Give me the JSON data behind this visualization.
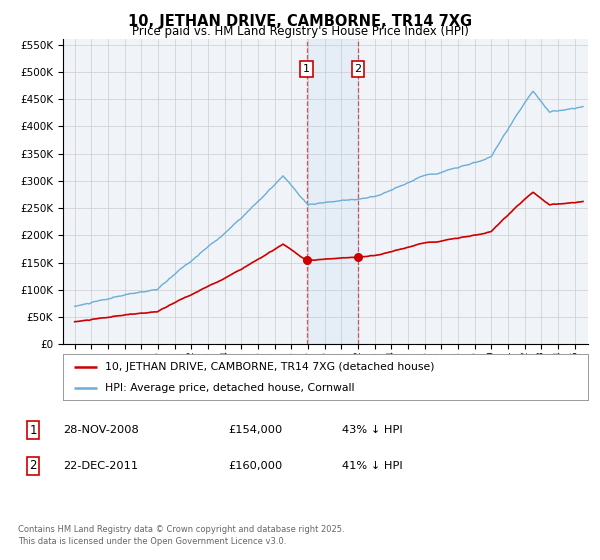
{
  "title": "10, JETHAN DRIVE, CAMBORNE, TR14 7XG",
  "subtitle": "Price paid vs. HM Land Registry's House Price Index (HPI)",
  "legend_line1": "10, JETHAN DRIVE, CAMBORNE, TR14 7XG (detached house)",
  "legend_line2": "HPI: Average price, detached house, Cornwall",
  "annotation1_date": "28-NOV-2008",
  "annotation1_price": "£154,000",
  "annotation1_text": "43% ↓ HPI",
  "annotation2_date": "22-DEC-2011",
  "annotation2_price": "£160,000",
  "annotation2_text": "41% ↓ HPI",
  "footer": "Contains HM Land Registry data © Crown copyright and database right 2025.\nThis data is licensed under the Open Government Licence v3.0.",
  "hpi_color": "#6baed6",
  "price_color": "#cc0000",
  "sale1_t": 2008.92,
  "sale2_t": 2012.0,
  "sale1_price": 154000,
  "sale2_price": 160000,
  "ylim": [
    0,
    560000
  ],
  "yticks": [
    0,
    50000,
    100000,
    150000,
    200000,
    250000,
    300000,
    350000,
    400000,
    450000,
    500000,
    550000
  ],
  "xlim_min": 1994.3,
  "xlim_max": 2025.8,
  "background_color": "#ffffff",
  "plot_bg_color": "#f0f4f8",
  "grid_color": "#cccccc"
}
